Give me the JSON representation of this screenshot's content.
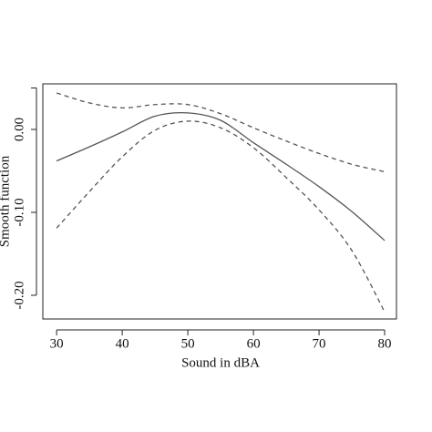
{
  "chart_data": {
    "type": "line",
    "xlabel": "Sound in dBA",
    "ylabel": "Smooth function",
    "x": [
      30,
      35,
      40,
      45,
      50,
      55,
      60,
      65,
      70,
      75,
      80
    ],
    "series": [
      {
        "color": "#555555",
        "dash": false,
        "values": [
          -0.038,
          -0.021,
          -0.003,
          0.016,
          0.02,
          0.011,
          -0.016,
          -0.042,
          -0.069,
          -0.099,
          -0.134
        ]
      },
      {
        "color": "#555555",
        "dash": true,
        "values": [
          0.044,
          0.032,
          0.026,
          0.03,
          0.03,
          0.019,
          0.002,
          -0.014,
          -0.029,
          -0.042,
          -0.051
        ]
      },
      {
        "color": "#555555",
        "dash": true,
        "values": [
          -0.119,
          -0.075,
          -0.033,
          -0.001,
          0.01,
          0.002,
          -0.022,
          -0.058,
          -0.097,
          -0.146,
          -0.22
        ]
      }
    ],
    "xlim": [
      27.9,
      81.8
    ],
    "ylim": [
      -0.2286,
      0.055
    ],
    "xticks": [
      30,
      40,
      50,
      60,
      70,
      80
    ],
    "yticks": [
      {
        "value": -0.2,
        "label": "-0.20"
      },
      {
        "value": -0.1,
        "label": "-0.10"
      },
      {
        "value": 0,
        "label": "0.00"
      },
      {
        "value": 0.05,
        "label": null
      }
    ]
  }
}
